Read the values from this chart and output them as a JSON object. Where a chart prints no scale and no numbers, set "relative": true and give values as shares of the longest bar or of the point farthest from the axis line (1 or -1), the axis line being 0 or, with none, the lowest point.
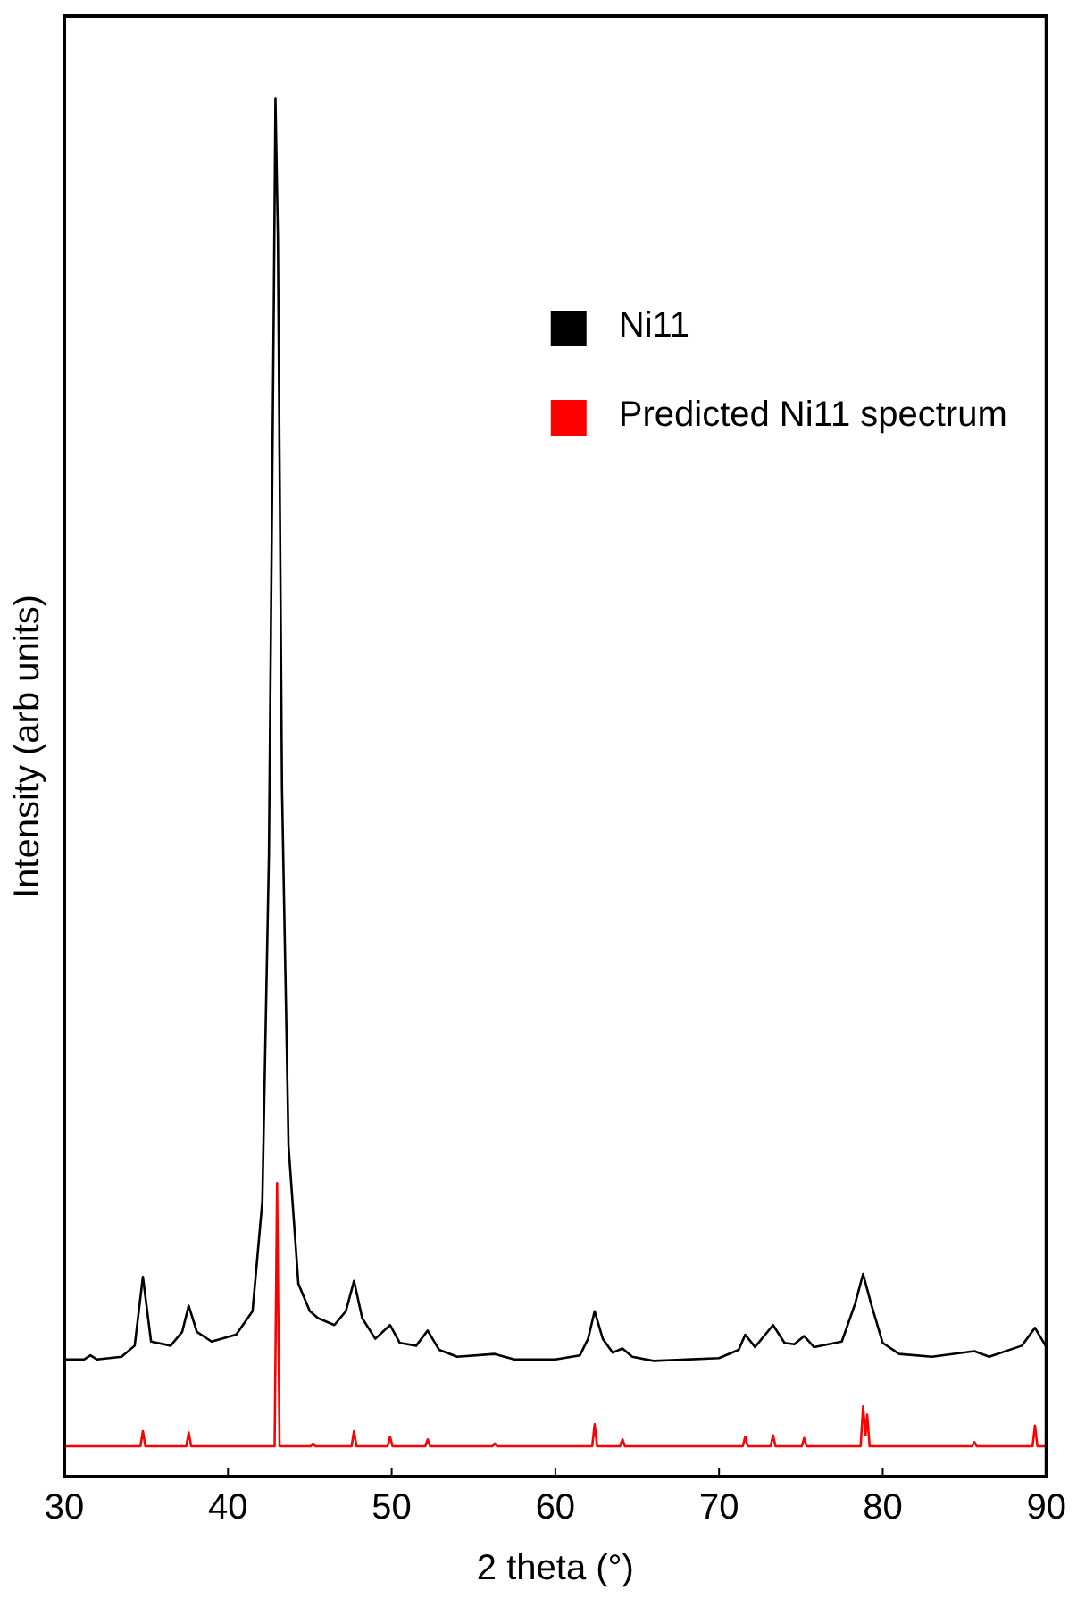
{
  "chart_data": {
    "type": "line",
    "xlabel": "2 theta (°)",
    "ylabel": "Intensity (arb units)",
    "relative": true,
    "xlim": [
      30,
      90
    ],
    "xticks": [
      30,
      40,
      50,
      60,
      70,
      80,
      90
    ],
    "grid": false,
    "legend": "top right",
    "marker": "none",
    "line_style": "solid",
    "series": [
      {
        "name": "Ni11",
        "color": "#000000",
        "x": [
          30,
          31.2,
          31.6,
          32,
          33.5,
          34.3,
          34.8,
          35.3,
          36.5,
          37.2,
          37.6,
          38.1,
          39,
          40.5,
          41.5,
          42.1,
          42.5,
          42.8,
          42.9,
          43.05,
          43.3,
          43.7,
          44.3,
          45,
          45.5,
          46.5,
          47.2,
          47.7,
          48.2,
          49,
          49.9,
          50.5,
          51.5,
          52.2,
          52.9,
          54,
          56.3,
          57.5,
          60,
          61.5,
          62,
          62.4,
          62.9,
          63.5,
          64.1,
          64.7,
          66,
          70,
          71.2,
          71.6,
          72.2,
          73.3,
          74,
          74.6,
          75.2,
          75.8,
          77.5,
          78.3,
          78.8,
          79.3,
          80,
          81,
          83,
          85.6,
          86.5,
          88.5,
          89.3,
          90
        ],
        "values": [
          0.085,
          0.085,
          0.088,
          0.085,
          0.087,
          0.095,
          0.145,
          0.098,
          0.095,
          0.105,
          0.124,
          0.105,
          0.098,
          0.103,
          0.12,
          0.2,
          0.45,
          0.85,
          1.0,
          0.9,
          0.5,
          0.24,
          0.14,
          0.12,
          0.115,
          0.11,
          0.12,
          0.142,
          0.115,
          0.1,
          0.11,
          0.097,
          0.095,
          0.106,
          0.092,
          0.087,
          0.089,
          0.085,
          0.085,
          0.088,
          0.1,
          0.12,
          0.1,
          0.09,
          0.093,
          0.087,
          0.084,
          0.086,
          0.092,
          0.103,
          0.094,
          0.11,
          0.097,
          0.096,
          0.102,
          0.094,
          0.098,
          0.125,
          0.147,
          0.125,
          0.097,
          0.089,
          0.087,
          0.091,
          0.087,
          0.095,
          0.108,
          0.094
        ]
      },
      {
        "name": "Predicted Ni11 spectrum",
        "color": "#ff0000",
        "x": [
          30,
          34.65,
          34.8,
          34.95,
          37.45,
          37.6,
          37.75,
          42.85,
          43.0,
          43.15,
          45.05,
          45.2,
          45.35,
          47.55,
          47.7,
          47.85,
          49.75,
          49.9,
          50.05,
          52.05,
          52.2,
          52.35,
          56.15,
          56.3,
          56.45,
          62.25,
          62.4,
          62.55,
          63.95,
          64.1,
          64.25,
          71.45,
          71.6,
          71.75,
          73.15,
          73.3,
          73.45,
          75.05,
          75.2,
          75.35,
          78.65,
          78.8,
          78.95,
          79.05,
          79.2,
          85.45,
          85.6,
          85.75,
          89.15,
          89.3,
          89.45,
          90
        ],
        "values": [
          0.022,
          0.022,
          0.033,
          0.022,
          0.022,
          0.032,
          0.022,
          0.022,
          0.213,
          0.022,
          0.022,
          0.024,
          0.022,
          0.022,
          0.033,
          0.022,
          0.022,
          0.029,
          0.022,
          0.022,
          0.027,
          0.022,
          0.022,
          0.024,
          0.022,
          0.022,
          0.038,
          0.022,
          0.022,
          0.027,
          0.022,
          0.022,
          0.029,
          0.022,
          0.022,
          0.03,
          0.022,
          0.022,
          0.028,
          0.022,
          0.022,
          0.051,
          0.03,
          0.045,
          0.022,
          0.022,
          0.025,
          0.022,
          0.022,
          0.037,
          0.022,
          0.022
        ]
      }
    ]
  }
}
